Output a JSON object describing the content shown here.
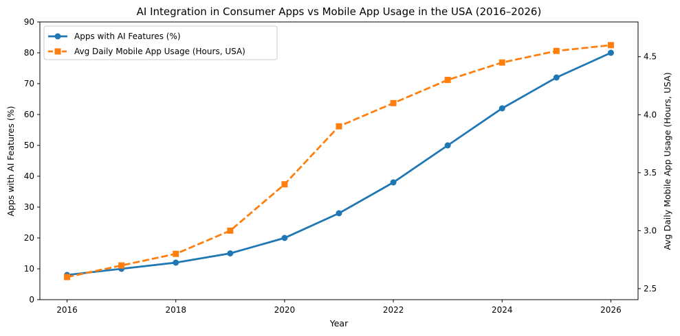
{
  "chart_data": {
    "type": "line",
    "title": "AI Integration in Consumer Apps vs Mobile App Usage in the USA (2016–2026)",
    "xlabel": "Year",
    "ylabel": "Apps with AI Features (%)",
    "ylabel_right": "Avg Daily Mobile App Usage (Hours, USA)",
    "x": [
      2016,
      2017,
      2018,
      2019,
      2020,
      2021,
      2022,
      2023,
      2024,
      2025,
      2026
    ],
    "xlim": [
      2015.5,
      2026.5
    ],
    "ylim": [
      0,
      90
    ],
    "ylim_right": [
      2.405,
      4.8
    ],
    "xticks": [
      "2016",
      "2018",
      "2020",
      "2022",
      "2024",
      "2026"
    ],
    "yticks": [
      "0",
      "10",
      "20",
      "30",
      "40",
      "50",
      "60",
      "70",
      "80",
      "90"
    ],
    "yticks_right": [
      "2.5",
      "3.0",
      "3.5",
      "4.0",
      "4.5"
    ],
    "grid": false,
    "legend_position": "top-left",
    "series": [
      {
        "name": "Apps with AI Features (%)",
        "axis": "left",
        "color": "#1f77b4",
        "marker": "circle",
        "linestyle": "solid",
        "values": [
          8,
          10,
          12,
          15,
          20,
          28,
          38,
          50,
          62,
          72,
          80
        ]
      },
      {
        "name": "Avg Daily Mobile App Usage (Hours, USA)",
        "axis": "right",
        "color": "#ff7f0e",
        "marker": "square",
        "linestyle": "dashed",
        "values": [
          2.6,
          2.7,
          2.8,
          3.0,
          3.4,
          3.9,
          4.1,
          4.3,
          4.45,
          4.55,
          4.6
        ]
      }
    ]
  }
}
